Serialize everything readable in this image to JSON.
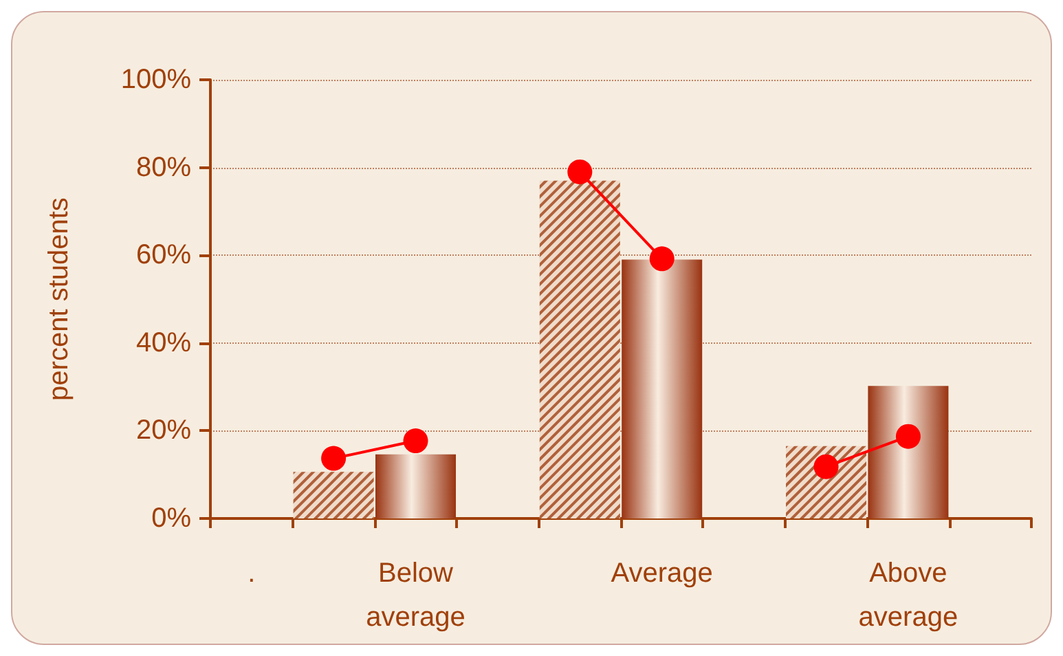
{
  "chart_data": {
    "type": "bar",
    "ylabel": "percent students",
    "categories": [
      ".",
      null,
      "Below\naverage",
      null,
      null,
      "Average",
      null,
      null,
      "Above\naverage",
      null
    ],
    "series": [
      {
        "color": "#b0603a",
        "values": [
          null,
          10.6,
          null,
          null,
          77,
          null,
          null,
          16.5,
          null,
          null
        ]
      },
      {
        "color": "#993311",
        "values": [
          null,
          null,
          14.6,
          null,
          null,
          59,
          null,
          null,
          30.2,
          null
        ]
      },
      {
        "type": "line",
        "color": "#ff0000",
        "values": [
          null,
          13.7,
          17.7,
          null,
          79,
          59.2,
          null,
          11.8,
          18.7,
          null
        ]
      }
    ],
    "ylim": [
      0,
      100
    ],
    "yticks": [
      {
        "value": 0,
        "label": "0%"
      },
      {
        "value": 20,
        "label": "20%"
      },
      {
        "value": 40,
        "label": "40%"
      },
      {
        "value": 60,
        "label": "60%"
      },
      {
        "value": 80,
        "label": "80%"
      },
      {
        "value": 100,
        "label": "100%"
      }
    ],
    "grid": "y",
    "marker": "circle"
  }
}
